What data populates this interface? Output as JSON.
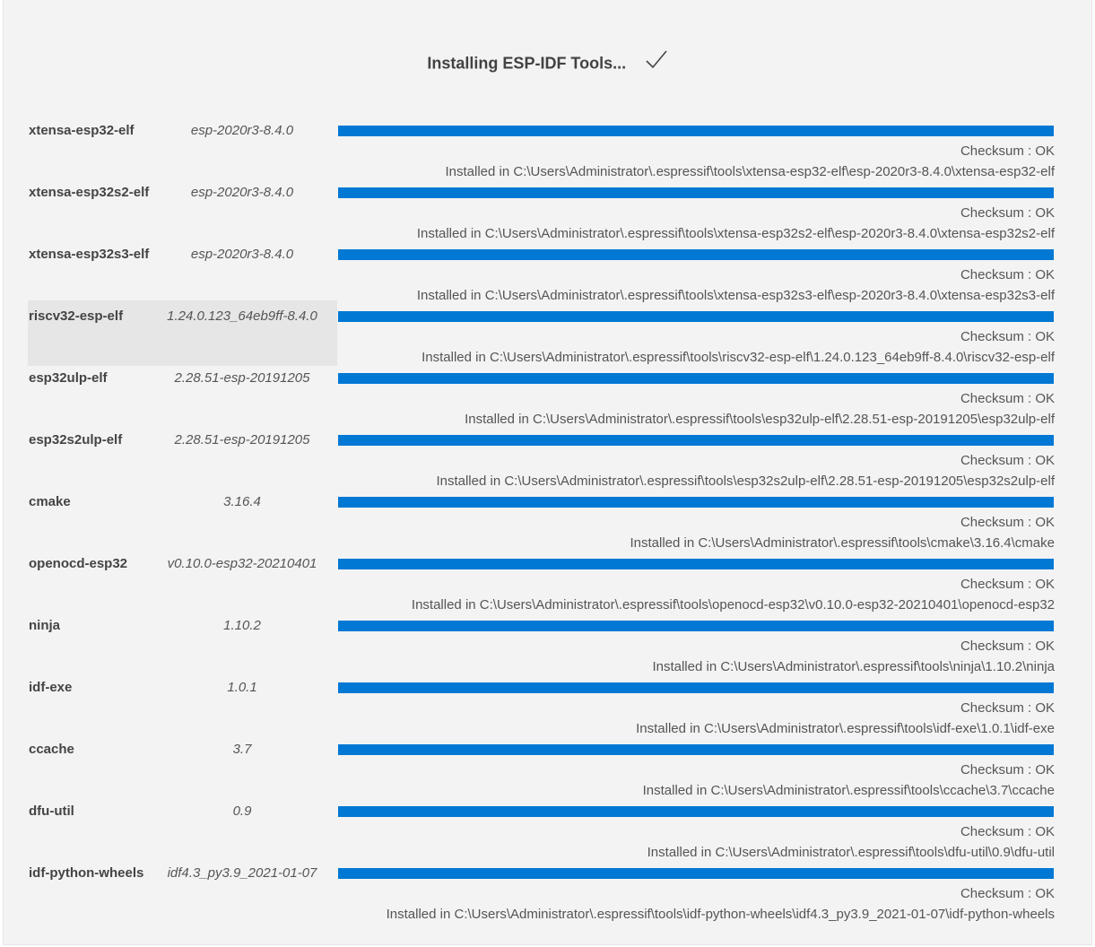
{
  "header": {
    "title": "Installing ESP-IDF Tools...",
    "status_icon": "checkmark-icon"
  },
  "colors": {
    "progress": "#0078d4",
    "background": "#f3f3f3",
    "highlight": "#e6e6e6"
  },
  "tools": [
    {
      "name": "xtensa-esp32-elf",
      "version": "esp-2020r3-8.4.0",
      "progress": 1.0,
      "checksum": "Checksum : OK",
      "path": "Installed in C:\\Users\\Administrator\\.espressif\\tools\\xtensa-esp32-elf\\esp-2020r3-8.4.0\\xtensa-esp32-elf"
    },
    {
      "name": "xtensa-esp32s2-elf",
      "version": "esp-2020r3-8.4.0",
      "progress": 1.0,
      "checksum": "Checksum : OK",
      "path": "Installed in C:\\Users\\Administrator\\.espressif\\tools\\xtensa-esp32s2-elf\\esp-2020r3-8.4.0\\xtensa-esp32s2-elf"
    },
    {
      "name": "xtensa-esp32s3-elf",
      "version": "esp-2020r3-8.4.0",
      "progress": 1.0,
      "checksum": "Checksum : OK",
      "path": "Installed in C:\\Users\\Administrator\\.espressif\\tools\\xtensa-esp32s3-elf\\esp-2020r3-8.4.0\\xtensa-esp32s3-elf"
    },
    {
      "name": "riscv32-esp-elf",
      "version": "1.24.0.123_64eb9ff-8.4.0",
      "progress": 1.0,
      "checksum": "Checksum : OK",
      "path": "Installed in C:\\Users\\Administrator\\.espressif\\tools\\riscv32-esp-elf\\1.24.0.123_64eb9ff-8.4.0\\riscv32-esp-elf",
      "highlighted": true
    },
    {
      "name": "esp32ulp-elf",
      "version": "2.28.51-esp-20191205",
      "progress": 1.0,
      "checksum": "Checksum : OK",
      "path": "Installed in C:\\Users\\Administrator\\.espressif\\tools\\esp32ulp-elf\\2.28.51-esp-20191205\\esp32ulp-elf"
    },
    {
      "name": "esp32s2ulp-elf",
      "version": "2.28.51-esp-20191205",
      "progress": 1.0,
      "checksum": "Checksum : OK",
      "path": "Installed in C:\\Users\\Administrator\\.espressif\\tools\\esp32s2ulp-elf\\2.28.51-esp-20191205\\esp32s2ulp-elf"
    },
    {
      "name": "cmake",
      "version": "3.16.4",
      "progress": 1.0,
      "checksum": "Checksum : OK",
      "path": "Installed in C:\\Users\\Administrator\\.espressif\\tools\\cmake\\3.16.4\\cmake"
    },
    {
      "name": "openocd-esp32",
      "version": "v0.10.0-esp32-20210401",
      "progress": 1.0,
      "checksum": "Checksum : OK",
      "path": "Installed in C:\\Users\\Administrator\\.espressif\\tools\\openocd-esp32\\v0.10.0-esp32-20210401\\openocd-esp32"
    },
    {
      "name": "ninja",
      "version": "1.10.2",
      "progress": 1.0,
      "checksum": "Checksum : OK",
      "path": "Installed in C:\\Users\\Administrator\\.espressif\\tools\\ninja\\1.10.2\\ninja"
    },
    {
      "name": "idf-exe",
      "version": "1.0.1",
      "progress": 1.0,
      "checksum": "Checksum : OK",
      "path": "Installed in C:\\Users\\Administrator\\.espressif\\tools\\idf-exe\\1.0.1\\idf-exe"
    },
    {
      "name": "ccache",
      "version": "3.7",
      "progress": 1.0,
      "checksum": "Checksum : OK",
      "path": "Installed in C:\\Users\\Administrator\\.espressif\\tools\\ccache\\3.7\\ccache"
    },
    {
      "name": "dfu-util",
      "version": "0.9",
      "progress": 1.0,
      "checksum": "Checksum : OK",
      "path": "Installed in C:\\Users\\Administrator\\.espressif\\tools\\dfu-util\\0.9\\dfu-util"
    },
    {
      "name": "idf-python-wheels",
      "version": "idf4.3_py3.9_2021-01-07",
      "progress": 1.0,
      "checksum": "Checksum : OK",
      "path": "Installed in C:\\Users\\Administrator\\.espressif\\tools\\idf-python-wheels\\idf4.3_py3.9_2021-01-07\\idf-python-wheels"
    }
  ]
}
